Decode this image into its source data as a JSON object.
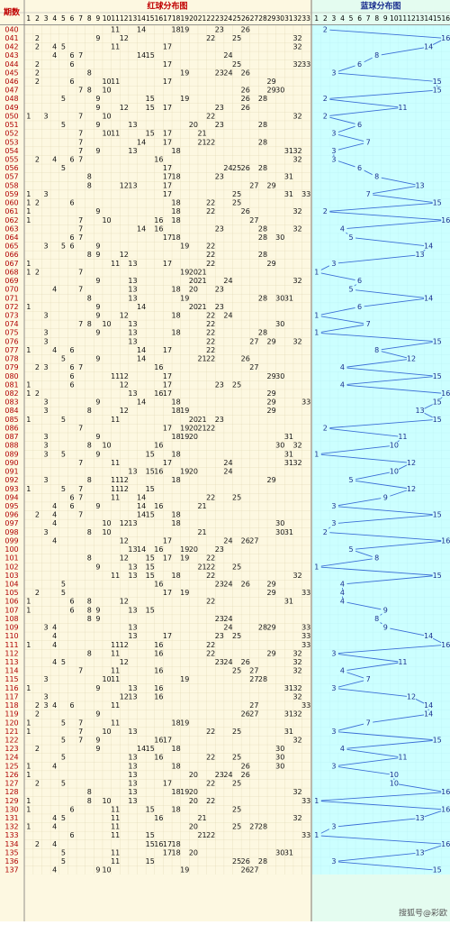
{
  "header": {
    "issue_label": "期数",
    "red_title": "红球分布图",
    "blue_title": "蓝球分布图"
  },
  "red_columns": [
    1,
    2,
    3,
    4,
    5,
    6,
    7,
    8,
    9,
    10,
    11,
    12,
    13,
    14,
    15,
    16,
    17,
    18,
    19,
    20,
    21,
    22,
    23,
    24,
    25,
    26,
    27,
    28,
    29,
    30,
    31,
    32,
    33
  ],
  "blue_columns": [
    1,
    2,
    3,
    4,
    5,
    6,
    7,
    8,
    9,
    10,
    11,
    12,
    13,
    14,
    15,
    16
  ],
  "rows": [
    {
      "issue": "040",
      "red": [
        11,
        14,
        18,
        19,
        23,
        26
      ],
      "blue": 2
    },
    {
      "issue": "041",
      "red": [
        2,
        9,
        12,
        22,
        25,
        32
      ],
      "blue": 16
    },
    {
      "issue": "042",
      "red": [
        2,
        4,
        5,
        11,
        17,
        32
      ],
      "blue": 14
    },
    {
      "issue": "043",
      "red": [
        4,
        6,
        7,
        14,
        15,
        24
      ],
      "blue": 8
    },
    {
      "issue": "044",
      "red": [
        2,
        6,
        17,
        25,
        32,
        33
      ],
      "blue": 6
    },
    {
      "issue": "045",
      "red": [
        2,
        8,
        19,
        23,
        24,
        26
      ],
      "blue": 3
    },
    {
      "issue": "046",
      "red": [
        2,
        6,
        10,
        11,
        17,
        29
      ],
      "blue": 15
    },
    {
      "issue": "047",
      "red": [
        7,
        8,
        10,
        26,
        29,
        30
      ],
      "blue": 15
    },
    {
      "issue": "048",
      "red": [
        5,
        9,
        15,
        19,
        26,
        28
      ],
      "blue": 2
    },
    {
      "issue": "049",
      "red": [
        9,
        12,
        15,
        17,
        23,
        26
      ],
      "blue": 11
    },
    {
      "issue": "050",
      "red": [
        1,
        3,
        7,
        10,
        22,
        32
      ],
      "blue": 2
    },
    {
      "issue": "051",
      "red": [
        5,
        9,
        13,
        20,
        23,
        28
      ],
      "blue": 6
    },
    {
      "issue": "052",
      "red": [
        7,
        10,
        11,
        15,
        17,
        21
      ],
      "blue": 3
    },
    {
      "issue": "053",
      "red": [
        7,
        14,
        17,
        21,
        22,
        28
      ],
      "blue": 7
    },
    {
      "issue": "054",
      "red": [
        7,
        9,
        13,
        18,
        31,
        32
      ],
      "blue": 3
    },
    {
      "issue": "055",
      "red": [
        2,
        4,
        6,
        7,
        16,
        32
      ],
      "blue": 3
    },
    {
      "issue": "056",
      "red": [
        5,
        17,
        24,
        25,
        26,
        28
      ],
      "blue": 6
    },
    {
      "issue": "057",
      "red": [
        8,
        17,
        18,
        23,
        31
      ],
      "blue": 8
    },
    {
      "issue": "058",
      "red": [
        8,
        12,
        13,
        17,
        27,
        29
      ],
      "blue": 13
    },
    {
      "issue": "059",
      "red": [
        1,
        3,
        17,
        25,
        31,
        33
      ],
      "blue": 7
    },
    {
      "issue": "060",
      "red": [
        1,
        2,
        6,
        18,
        22,
        25
      ],
      "blue": 15
    },
    {
      "issue": "061",
      "red": [
        1,
        9,
        18,
        22,
        26,
        32
      ],
      "blue": 2
    },
    {
      "issue": "062",
      "red": [
        1,
        7,
        10,
        16,
        18,
        27
      ],
      "blue": 16
    },
    {
      "issue": "063",
      "red": [
        7,
        14,
        16,
        23,
        28,
        32
      ],
      "blue": 4
    },
    {
      "issue": "064",
      "red": [
        6,
        7,
        17,
        18,
        28,
        30
      ],
      "blue": 5
    },
    {
      "issue": "065",
      "red": [
        3,
        5,
        6,
        9,
        19,
        22
      ],
      "blue": 14
    },
    {
      "issue": "066",
      "red": [
        8,
        9,
        12,
        22,
        28
      ],
      "blue": 13
    },
    {
      "issue": "067",
      "red": [
        1,
        11,
        13,
        17,
        22,
        29
      ],
      "blue": 3
    },
    {
      "issue": "068",
      "red": [
        1,
        2,
        7,
        19,
        20,
        21
      ],
      "blue": 1
    },
    {
      "issue": "069",
      "red": [
        9,
        13,
        20,
        21,
        24,
        32
      ],
      "blue": 6
    },
    {
      "issue": "070",
      "red": [
        4,
        7,
        13,
        18,
        20,
        23
      ],
      "blue": 5
    },
    {
      "issue": "071",
      "red": [
        8,
        13,
        19,
        28,
        30,
        31
      ],
      "blue": 14
    },
    {
      "issue": "072",
      "red": [
        1,
        9,
        14,
        20,
        21,
        23
      ],
      "blue": 6
    },
    {
      "issue": "073",
      "red": [
        3,
        9,
        12,
        18,
        22,
        24
      ],
      "blue": 1
    },
    {
      "issue": "074",
      "red": [
        7,
        8,
        10,
        13,
        22,
        30
      ],
      "blue": 7
    },
    {
      "issue": "075",
      "red": [
        3,
        9,
        13,
        18,
        22,
        28
      ],
      "blue": 1
    },
    {
      "issue": "076",
      "red": [
        3,
        13,
        22,
        27,
        29,
        32
      ],
      "blue": 15
    },
    {
      "issue": "077",
      "red": [
        1,
        4,
        6,
        14,
        17,
        22
      ],
      "blue": 8
    },
    {
      "issue": "078",
      "red": [
        5,
        9,
        14,
        21,
        22,
        26
      ],
      "blue": 12
    },
    {
      "issue": "079",
      "red": [
        2,
        3,
        6,
        7,
        16,
        27
      ],
      "blue": 4
    },
    {
      "issue": "080",
      "red": [
        6,
        11,
        12,
        17,
        29,
        30
      ],
      "blue": 15
    },
    {
      "issue": "081",
      "red": [
        1,
        6,
        12,
        17,
        23,
        25
      ],
      "blue": 4
    },
    {
      "issue": "082",
      "red": [
        1,
        2,
        13,
        16,
        17,
        29
      ],
      "blue": 16
    },
    {
      "issue": "083",
      "red": [
        3,
        9,
        14,
        18,
        29,
        33
      ],
      "blue": 15
    },
    {
      "issue": "084",
      "red": [
        3,
        8,
        12,
        18,
        19,
        29
      ],
      "blue": 13
    },
    {
      "issue": "085",
      "red": [
        1,
        5,
        11,
        20,
        21,
        23
      ],
      "blue": 15
    },
    {
      "issue": "086",
      "red": [
        7,
        17,
        19,
        20,
        21,
        22
      ],
      "blue": 2
    },
    {
      "issue": "087",
      "red": [
        3,
        9,
        18,
        19,
        20,
        31
      ],
      "blue": 11
    },
    {
      "issue": "088",
      "red": [
        3,
        8,
        10,
        16,
        30,
        32
      ],
      "blue": 10
    },
    {
      "issue": "089",
      "red": [
        3,
        5,
        9,
        15,
        18,
        31
      ],
      "blue": 1
    },
    {
      "issue": "090",
      "red": [
        7,
        11,
        17,
        24,
        31,
        32
      ],
      "blue": 12
    },
    {
      "issue": "091",
      "red": [
        13,
        15,
        16,
        19,
        20,
        24
      ],
      "blue": 10
    },
    {
      "issue": "092",
      "red": [
        3,
        8,
        11,
        12,
        18,
        29
      ],
      "blue": 5
    },
    {
      "issue": "093",
      "red": [
        1,
        5,
        7,
        11,
        12,
        15
      ],
      "blue": 12
    },
    {
      "issue": "094",
      "red": [
        6,
        7,
        11,
        14,
        22,
        25
      ],
      "blue": 9
    },
    {
      "issue": "095",
      "red": [
        4,
        6,
        9,
        14,
        16,
        21
      ],
      "blue": 3
    },
    {
      "issue": "096",
      "red": [
        2,
        4,
        7,
        14,
        15,
        18
      ],
      "blue": 15
    },
    {
      "issue": "097",
      "red": [
        4,
        10,
        12,
        13,
        18,
        30
      ],
      "blue": 3
    },
    {
      "issue": "098",
      "red": [
        3,
        8,
        10,
        21,
        30,
        31
      ],
      "blue": 2
    },
    {
      "issue": "099",
      "red": [
        4,
        12,
        17,
        24,
        26,
        27
      ],
      "blue": 16
    },
    {
      "issue": "100",
      "red": [
        13,
        14,
        16,
        19,
        20,
        23
      ],
      "blue": 5
    },
    {
      "issue": "101",
      "red": [
        8,
        12,
        15,
        17,
        19,
        22
      ],
      "blue": 8
    },
    {
      "issue": "102",
      "red": [
        9,
        13,
        15,
        21,
        22,
        25
      ],
      "blue": 1
    },
    {
      "issue": "103",
      "red": [
        11,
        13,
        15,
        18,
        22,
        32
      ],
      "blue": 15
    },
    {
      "issue": "104",
      "red": [
        5,
        16,
        23,
        24,
        26,
        29
      ],
      "blue": 4
    },
    {
      "issue": "105",
      "red": [
        2,
        5,
        17,
        19,
        29,
        33
      ],
      "blue": 4
    },
    {
      "issue": "106",
      "red": [
        1,
        6,
        8,
        12,
        22,
        31
      ],
      "blue": 4
    },
    {
      "issue": "107",
      "red": [
        1,
        6,
        8,
        9,
        13,
        15
      ],
      "blue": 9
    },
    {
      "issue": "108",
      "red": [
        8,
        9,
        23,
        24
      ],
      "blue": 8
    },
    {
      "issue": "109",
      "red": [
        3,
        4,
        13,
        24,
        28,
        29,
        33
      ],
      "blue": 9
    },
    {
      "issue": "110",
      "red": [
        4,
        13,
        17,
        23,
        25,
        33
      ],
      "blue": 14
    },
    {
      "issue": "111",
      "red": [
        1,
        4,
        11,
        12,
        16,
        22,
        33
      ],
      "blue": 16
    },
    {
      "issue": "112",
      "red": [
        8,
        11,
        16,
        22,
        29,
        32
      ],
      "blue": 3
    },
    {
      "issue": "113",
      "red": [
        4,
        5,
        12,
        23,
        24,
        26,
        32
      ],
      "blue": 11
    },
    {
      "issue": "114",
      "red": [
        7,
        11,
        16,
        25,
        27,
        32
      ],
      "blue": 4
    },
    {
      "issue": "115",
      "red": [
        3,
        10,
        11,
        19,
        27,
        28
      ],
      "blue": 7
    },
    {
      "issue": "116",
      "red": [
        1,
        9,
        13,
        16,
        31,
        32
      ],
      "blue": 3
    },
    {
      "issue": "117",
      "red": [
        3,
        12,
        13,
        16,
        32
      ],
      "blue": 12
    },
    {
      "issue": "118",
      "red": [
        2,
        3,
        4,
        6,
        11,
        27,
        33
      ],
      "blue": 14
    },
    {
      "issue": "119",
      "red": [
        2,
        9,
        26,
        27,
        31,
        32
      ],
      "blue": 14
    },
    {
      "issue": "120",
      "red": [
        1,
        5,
        7,
        11,
        18,
        19
      ],
      "blue": 7
    },
    {
      "issue": "121",
      "red": [
        1,
        7,
        10,
        13,
        22,
        25,
        31
      ],
      "blue": 3
    },
    {
      "issue": "122",
      "red": [
        5,
        7,
        9,
        16,
        17,
        32
      ],
      "blue": 15
    },
    {
      "issue": "123",
      "red": [
        2,
        9,
        14,
        15,
        18,
        30
      ],
      "blue": 4
    },
    {
      "issue": "124",
      "red": [
        5,
        13,
        16,
        22,
        25,
        30
      ],
      "blue": 11
    },
    {
      "issue": "125",
      "red": [
        1,
        4,
        13,
        18,
        26,
        30
      ],
      "blue": 3
    },
    {
      "issue": "126",
      "red": [
        1,
        13,
        20,
        23,
        24,
        26
      ],
      "blue": 10
    },
    {
      "issue": "127",
      "red": [
        2,
        5,
        13,
        17,
        22,
        25
      ],
      "blue": 10
    },
    {
      "issue": "128",
      "red": [
        8,
        13,
        18,
        19,
        20,
        32
      ],
      "blue": 16
    },
    {
      "issue": "129",
      "red": [
        1,
        8,
        10,
        13,
        20,
        22,
        33
      ],
      "blue": 1
    },
    {
      "issue": "130",
      "red": [
        1,
        6,
        11,
        15,
        18,
        25
      ],
      "blue": 16
    },
    {
      "issue": "131",
      "red": [
        4,
        5,
        11,
        16,
        21,
        32
      ],
      "blue": 13
    },
    {
      "issue": "132",
      "red": [
        1,
        4,
        11,
        20,
        25,
        27,
        28
      ],
      "blue": 3
    },
    {
      "issue": "133",
      "red": [
        6,
        11,
        15,
        21,
        22,
        33
      ],
      "blue": 1
    },
    {
      "issue": "134",
      "red": [
        2,
        4,
        15,
        16,
        17,
        18
      ],
      "blue": 16
    },
    {
      "issue": "135",
      "red": [
        5,
        11,
        17,
        18,
        20,
        30,
        31
      ],
      "blue": 13
    },
    {
      "issue": "136",
      "red": [
        5,
        11,
        15,
        25,
        26,
        28
      ],
      "blue": 3
    },
    {
      "issue": "137",
      "red": [
        4,
        9,
        10,
        19,
        26,
        27
      ],
      "blue": 15
    }
  ],
  "footer": "搜狐号@彩欧"
}
